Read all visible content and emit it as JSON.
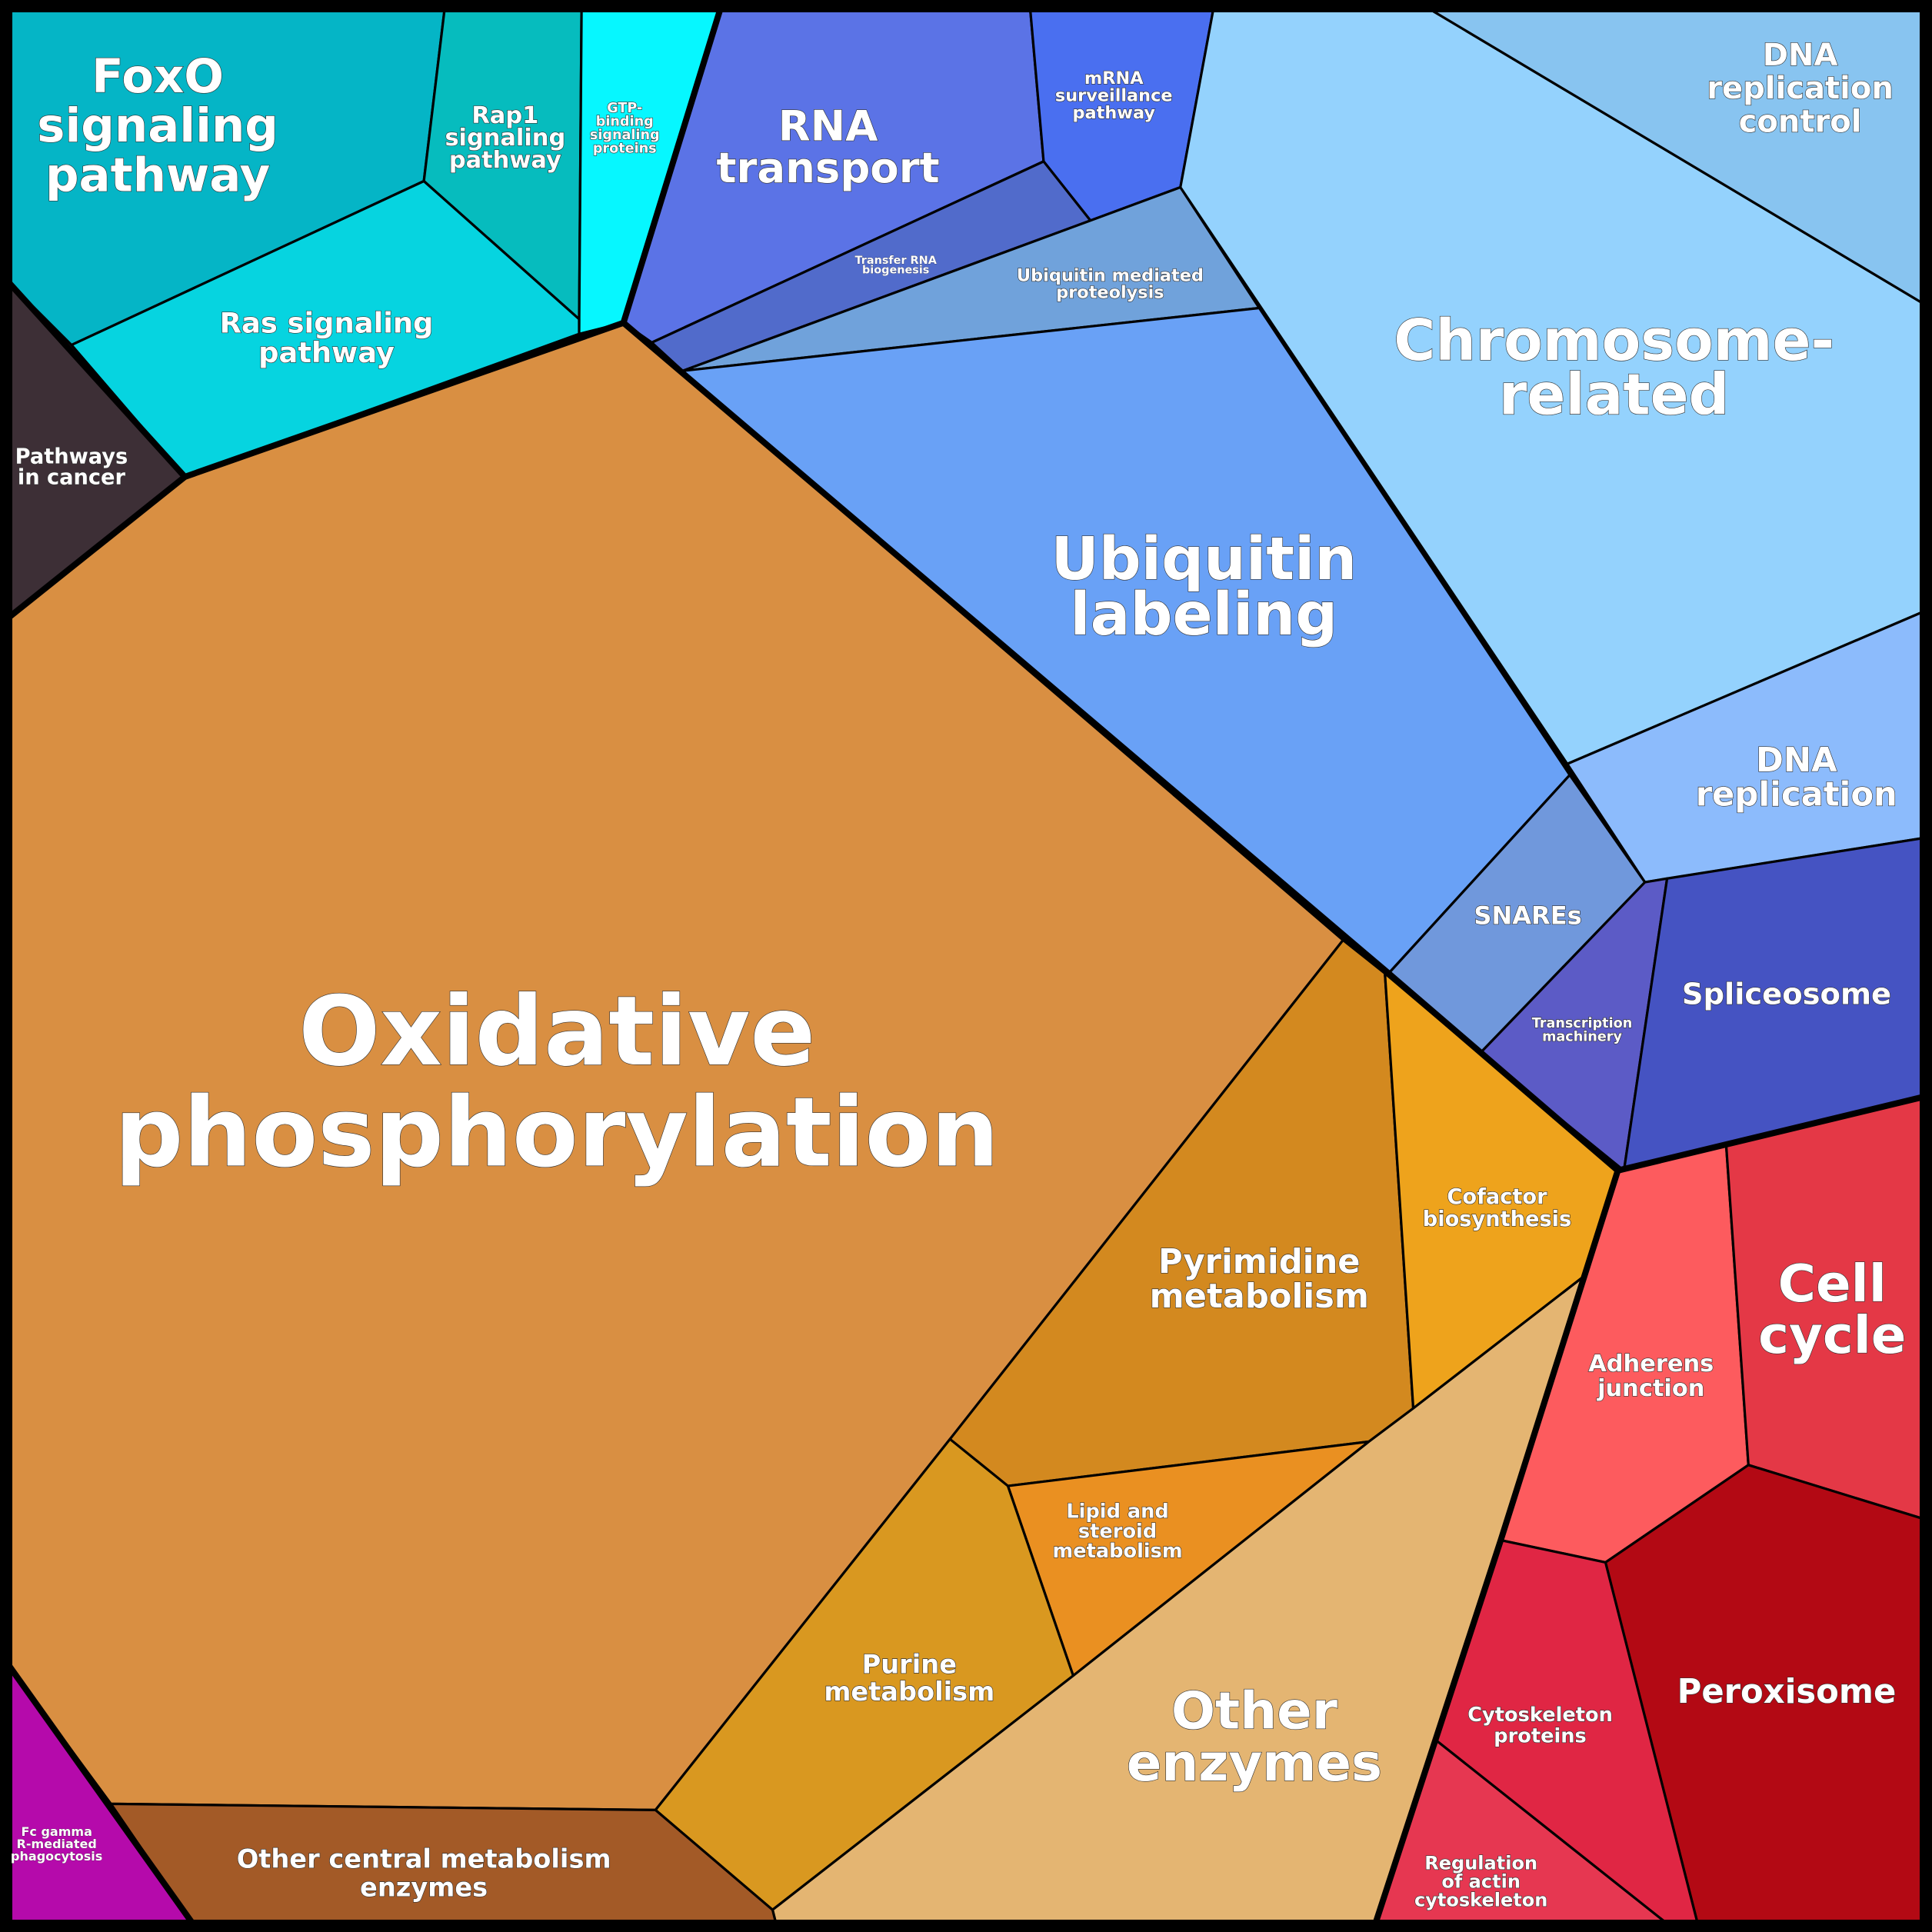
{
  "title": "Proteomaps-style Voronoi treemap of KEGG pathway categories",
  "colors": {
    "border": "#000000",
    "label_text": "#ffffff"
  },
  "cells": {
    "foxo": {
      "label": [
        "FoxO",
        "signaling",
        "pathway"
      ],
      "color": "#05b5c6"
    },
    "rap1": {
      "label": [
        "Rap1",
        "signaling",
        "pathway"
      ],
      "color": "#06bcbe"
    },
    "gtp": {
      "label": [
        "GTP-",
        "binding",
        "signaling",
        "proteins"
      ],
      "color": "#06f7ff"
    },
    "ras": {
      "label": [
        "Ras signaling",
        "pathway"
      ],
      "color": "#06d4e0"
    },
    "cancer": {
      "label": [
        "Pathways",
        "in cancer"
      ],
      "color": "#3d2f36"
    },
    "rna_transport": {
      "label": [
        "RNA",
        "transport"
      ],
      "color": "#5b73e6"
    },
    "mrna_surv": {
      "label": [
        "mRNA",
        "surveillance",
        "pathway"
      ],
      "color": "#4a6ff0"
    },
    "trna": {
      "label": [
        "Transfer RNA",
        "biogenesis"
      ],
      "color": "#516bcb"
    },
    "ubq_prot": {
      "label": [
        "Ubiquitin mediated",
        "proteolysis"
      ],
      "color": "#70a2db"
    },
    "ubq_label": {
      "label": [
        "Ubiquitin",
        "labeling"
      ],
      "color": "#69a1f6"
    },
    "chromosome": {
      "label": [
        "Chromosome-",
        "related"
      ],
      "color": "#94d2fd"
    },
    "dna_rep_ctrl": {
      "label": [
        "DNA",
        "replication",
        "control"
      ],
      "color": "#88c4f0"
    },
    "dna_rep": {
      "label": [
        "DNA",
        "replication"
      ],
      "color": "#8cbbfc"
    },
    "snares": {
      "label": [
        "SNAREs"
      ],
      "color": "#7098dc"
    },
    "transcription": {
      "label": [
        "Transcription",
        "machinery"
      ],
      "color": "#5c5bc6"
    },
    "spliceosome": {
      "label": [
        "Spliceosome"
      ],
      "color": "#4553c2"
    },
    "oxphos": {
      "label": [
        "Oxidative",
        "phosphorylation"
      ],
      "color": "#d98f42"
    },
    "pyrimidine": {
      "label": [
        "Pyrimidine",
        "metabolism"
      ],
      "color": "#d3891f"
    },
    "cofactor": {
      "label": [
        "Cofactor",
        "biosynthesis"
      ],
      "color": "#eea31c"
    },
    "lipid": {
      "label": [
        "Lipid and",
        "steroid",
        "metabolism"
      ],
      "color": "#ea9021"
    },
    "purine": {
      "label": [
        "Purine",
        "metabolism"
      ],
      "color": "#d99820"
    },
    "other_enzymes": {
      "label": [
        "Other",
        "enzymes"
      ],
      "color": "#e4b572"
    },
    "other_central": {
      "label": [
        "Other central metabolism",
        "enzymes"
      ],
      "color": "#a35a27"
    },
    "fc_gamma": {
      "label": [
        "Fc gamma",
        "R-mediated",
        "phagocytosis"
      ],
      "color": "#b50aab"
    },
    "adherens": {
      "label": [
        "Adherens",
        "junction"
      ],
      "color": "#fd5b5e"
    },
    "cell_cycle": {
      "label": [
        "Cell",
        "cycle"
      ],
      "color": "#e43846"
    },
    "peroxisome": {
      "label": [
        "Peroxisome"
      ],
      "color": "#b30914"
    },
    "cytoskeleton": {
      "label": [
        "Cytoskeleton",
        "proteins"
      ],
      "color": "#e02644"
    },
    "actin": {
      "label": [
        "Regulation",
        "of actin",
        "cytoskeleton"
      ],
      "color": "#e63751"
    }
  }
}
